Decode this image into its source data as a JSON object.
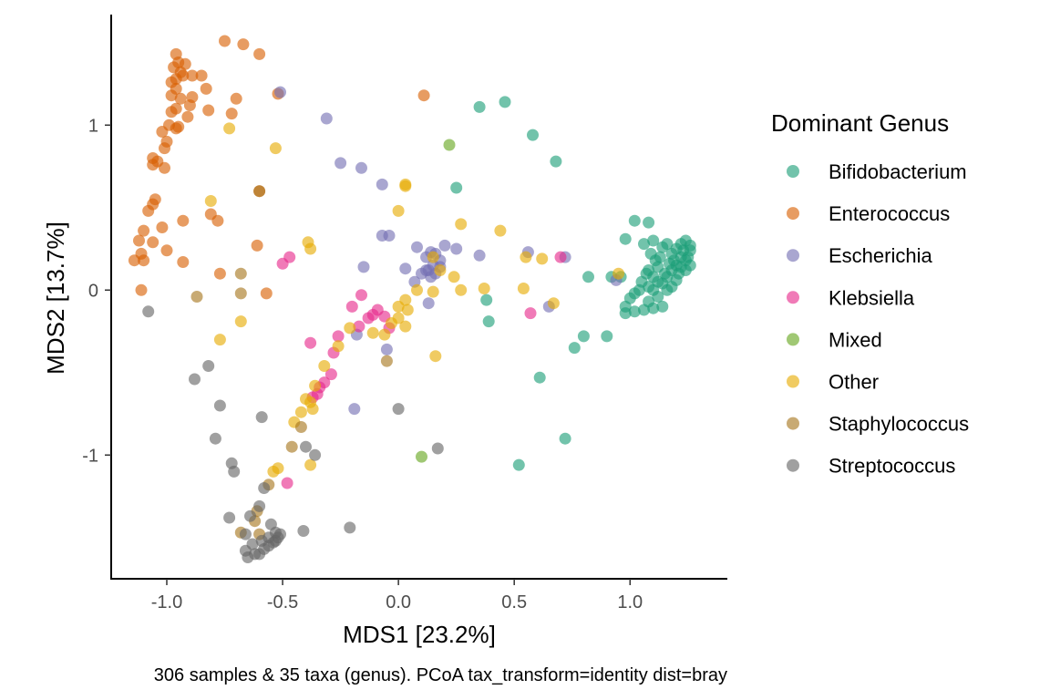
{
  "chart_data": {
    "type": "scatter",
    "xlabel": "MDS1 [23.2%]",
    "ylabel": "MDS2 [13.7%]",
    "caption": "306 samples & 35 taxa (genus). PCoA tax_transform=identity dist=bray",
    "xlim": [
      -1.24,
      1.42
    ],
    "ylim": [
      -1.75,
      1.67
    ],
    "x_ticks": [
      -1.0,
      -0.5,
      0.0,
      0.5,
      1.0
    ],
    "x_tick_labels": [
      "-1.0",
      "-0.5",
      "0.0",
      "0.5",
      "1.0"
    ],
    "y_ticks": [
      -1,
      0,
      1
    ],
    "y_tick_labels": [
      "-1",
      "0",
      "1"
    ],
    "grid": false,
    "legend": {
      "title": "Dominant Genus",
      "position": "right"
    },
    "series": [
      {
        "name": "Bifidobacterium",
        "color": "#1B9E77",
        "points": [
          [
            0.35,
            1.11
          ],
          [
            0.46,
            1.14
          ],
          [
            0.58,
            0.94
          ],
          [
            0.68,
            0.78
          ],
          [
            0.25,
            0.62
          ],
          [
            1.02,
            0.42
          ],
          [
            1.08,
            0.41
          ],
          [
            0.98,
            0.31
          ],
          [
            1.06,
            0.28
          ],
          [
            1.1,
            0.3
          ],
          [
            1.14,
            0.26
          ],
          [
            1.16,
            0.28
          ],
          [
            1.18,
            0.22
          ],
          [
            1.2,
            0.25
          ],
          [
            1.22,
            0.28
          ],
          [
            1.24,
            0.3
          ],
          [
            1.26,
            0.27
          ],
          [
            1.22,
            0.2
          ],
          [
            1.2,
            0.15
          ],
          [
            1.18,
            0.12
          ],
          [
            1.15,
            0.1
          ],
          [
            1.12,
            0.14
          ],
          [
            1.1,
            0.08
          ],
          [
            1.08,
            0.12
          ],
          [
            1.05,
            0.05
          ],
          [
            1.08,
            0.02
          ],
          [
            1.12,
            0.05
          ],
          [
            1.16,
            0.08
          ],
          [
            1.2,
            0.06
          ],
          [
            1.24,
            0.12
          ],
          [
            1.26,
            0.15
          ],
          [
            1.25,
            0.2
          ],
          [
            1.23,
            0.24
          ],
          [
            1.21,
            0.1
          ],
          [
            1.19,
            0.18
          ],
          [
            1.17,
            0.16
          ],
          [
            1.13,
            0.2
          ],
          [
            1.11,
            0.18
          ],
          [
            1.09,
            0.22
          ],
          [
            1.07,
            0.1
          ],
          [
            1.04,
            0.0
          ],
          [
            1.02,
            -0.02
          ],
          [
            1.0,
            -0.05
          ],
          [
            0.98,
            -0.1
          ],
          [
            0.98,
            -0.14
          ],
          [
            1.02,
            -0.13
          ],
          [
            1.06,
            -0.12
          ],
          [
            1.1,
            -0.11
          ],
          [
            1.14,
            -0.1
          ],
          [
            1.08,
            -0.07
          ],
          [
            1.12,
            -0.04
          ],
          [
            1.18,
            0.02
          ],
          [
            1.22,
            0.14
          ],
          [
            1.24,
            0.18
          ],
          [
            1.26,
            0.24
          ],
          [
            1.16,
            0.0
          ],
          [
            1.14,
            0.04
          ],
          [
            1.1,
            0.0
          ],
          [
            0.96,
            0.08
          ],
          [
            0.82,
            0.08
          ],
          [
            0.92,
            0.08
          ],
          [
            0.8,
            -0.28
          ],
          [
            0.76,
            -0.35
          ],
          [
            0.9,
            -0.28
          ],
          [
            0.38,
            -0.06
          ],
          [
            0.39,
            -0.19
          ],
          [
            0.61,
            -0.53
          ],
          [
            0.72,
            -0.9
          ],
          [
            0.52,
            -1.06
          ]
        ]
      },
      {
        "name": "Enterococcus",
        "color": "#D95F02",
        "points": [
          [
            -0.75,
            1.51
          ],
          [
            -0.67,
            1.49
          ],
          [
            -0.6,
            1.43
          ],
          [
            -0.96,
            1.43
          ],
          [
            -0.95,
            1.38
          ],
          [
            -0.97,
            1.35
          ],
          [
            -0.94,
            1.32
          ],
          [
            -0.92,
            1.37
          ],
          [
            -0.96,
            1.28
          ],
          [
            -0.98,
            1.26
          ],
          [
            -0.93,
            1.3
          ],
          [
            -0.89,
            1.3
          ],
          [
            -0.85,
            1.3
          ],
          [
            -0.96,
            1.22
          ],
          [
            -0.98,
            1.18
          ],
          [
            -0.94,
            1.16
          ],
          [
            -0.89,
            1.17
          ],
          [
            -0.83,
            1.22
          ],
          [
            -0.7,
            1.16
          ],
          [
            -0.52,
            1.19
          ],
          [
            0.11,
            1.18
          ],
          [
            -0.96,
            1.1
          ],
          [
            -0.9,
            1.12
          ],
          [
            -0.98,
            1.08
          ],
          [
            -0.91,
            1.05
          ],
          [
            -0.95,
            0.99
          ],
          [
            -0.99,
            1.0
          ],
          [
            -0.82,
            1.09
          ],
          [
            -0.72,
            1.07
          ],
          [
            -1.02,
            0.96
          ],
          [
            -0.96,
            0.98
          ],
          [
            -1.0,
            0.9
          ],
          [
            -1.01,
            0.86
          ],
          [
            -1.06,
            0.8
          ],
          [
            -1.04,
            0.78
          ],
          [
            -1.06,
            0.76
          ],
          [
            -1.01,
            0.74
          ],
          [
            -0.6,
            0.6
          ],
          [
            -1.05,
            0.55
          ],
          [
            -1.06,
            0.52
          ],
          [
            -1.08,
            0.48
          ],
          [
            -0.81,
            0.46
          ],
          [
            -0.78,
            0.42
          ],
          [
            -0.93,
            0.42
          ],
          [
            -1.02,
            0.38
          ],
          [
            -1.1,
            0.36
          ],
          [
            -1.12,
            0.3
          ],
          [
            -1.06,
            0.29
          ],
          [
            -0.61,
            0.27
          ],
          [
            -1.0,
            0.24
          ],
          [
            -1.11,
            0.22
          ],
          [
            -1.1,
            0.18
          ],
          [
            -1.14,
            0.18
          ],
          [
            -0.93,
            0.17
          ],
          [
            -0.77,
            0.1
          ],
          [
            -1.11,
            0.0
          ],
          [
            -0.57,
            -0.02
          ]
        ]
      },
      {
        "name": "Escherichia",
        "color": "#7570B3",
        "points": [
          [
            -0.51,
            1.2
          ],
          [
            -0.31,
            1.04
          ],
          [
            -0.25,
            0.77
          ],
          [
            -0.16,
            0.74
          ],
          [
            -0.07,
            0.64
          ],
          [
            -0.04,
            0.33
          ],
          [
            -0.07,
            0.33
          ],
          [
            0.08,
            0.26
          ],
          [
            0.12,
            0.2
          ],
          [
            0.14,
            0.23
          ],
          [
            0.16,
            0.22
          ],
          [
            0.18,
            0.18
          ],
          [
            0.15,
            0.15
          ],
          [
            0.13,
            0.12
          ],
          [
            0.16,
            0.1
          ],
          [
            0.14,
            0.08
          ],
          [
            0.12,
            0.12
          ],
          [
            0.18,
            0.14
          ],
          [
            0.2,
            0.27
          ],
          [
            0.25,
            0.25
          ],
          [
            0.35,
            0.21
          ],
          [
            0.56,
            0.23
          ],
          [
            0.72,
            0.2
          ],
          [
            0.94,
            0.06
          ],
          [
            -0.15,
            0.14
          ],
          [
            0.03,
            0.13
          ],
          [
            0.07,
            0.05
          ],
          [
            0.1,
            0.1
          ],
          [
            0.13,
            -0.08
          ],
          [
            -0.18,
            -0.27
          ],
          [
            -0.05,
            -0.36
          ],
          [
            0.65,
            -0.1
          ],
          [
            -0.19,
            -0.72
          ]
        ]
      },
      {
        "name": "Klebsiella",
        "color": "#E7298A",
        "points": [
          [
            -0.47,
            0.2
          ],
          [
            -0.5,
            0.16
          ],
          [
            0.7,
            0.2
          ],
          [
            0.57,
            -0.14
          ],
          [
            -0.38,
            -0.32
          ],
          [
            -0.16,
            -0.03
          ],
          [
            -0.2,
            -0.1
          ],
          [
            -0.17,
            -0.22
          ],
          [
            -0.13,
            -0.17
          ],
          [
            -0.11,
            -0.15
          ],
          [
            -0.09,
            -0.12
          ],
          [
            -0.06,
            -0.16
          ],
          [
            -0.04,
            -0.23
          ],
          [
            -0.26,
            -0.28
          ],
          [
            -0.28,
            -0.38
          ],
          [
            -0.29,
            -0.51
          ],
          [
            -0.32,
            -0.56
          ],
          [
            -0.35,
            -0.63
          ],
          [
            -0.48,
            -1.17
          ],
          [
            -0.37,
            -0.65
          ],
          [
            -0.34,
            -0.59
          ]
        ]
      },
      {
        "name": "Mixed",
        "color": "#66A61E",
        "points": [
          [
            0.22,
            0.88
          ],
          [
            0.1,
            -1.01
          ]
        ]
      },
      {
        "name": "Other",
        "color": "#E6AB02",
        "points": [
          [
            -0.73,
            0.98
          ],
          [
            -0.53,
            0.86
          ],
          [
            0.03,
            0.64
          ],
          [
            -0.81,
            0.54
          ],
          [
            0.0,
            0.48
          ],
          [
            0.27,
            0.4
          ],
          [
            0.44,
            0.36
          ],
          [
            -0.39,
            0.29
          ],
          [
            -0.38,
            0.25
          ],
          [
            0.15,
            0.2
          ],
          [
            0.55,
            0.2
          ],
          [
            0.62,
            0.19
          ],
          [
            0.18,
            0.12
          ],
          [
            0.24,
            0.08
          ],
          [
            0.37,
            0.01
          ],
          [
            0.54,
            0.01
          ],
          [
            0.67,
            -0.08
          ],
          [
            0.08,
            0.0
          ],
          [
            0.15,
            -0.01
          ],
          [
            0.27,
            0.0
          ],
          [
            0.03,
            -0.06
          ],
          [
            0.0,
            -0.1
          ],
          [
            0.04,
            -0.12
          ],
          [
            0.0,
            -0.17
          ],
          [
            0.03,
            -0.22
          ],
          [
            -0.03,
            -0.2
          ],
          [
            -0.06,
            -0.27
          ],
          [
            -0.11,
            -0.26
          ],
          [
            -0.21,
            -0.23
          ],
          [
            -0.26,
            -0.34
          ],
          [
            -0.32,
            -0.46
          ],
          [
            -0.36,
            -0.58
          ],
          [
            -0.4,
            -0.66
          ],
          [
            -0.37,
            -0.72
          ],
          [
            -0.42,
            -0.74
          ],
          [
            -0.45,
            -0.8
          ],
          [
            -0.52,
            -1.08
          ],
          [
            -0.54,
            -1.1
          ],
          [
            0.16,
            -0.4
          ],
          [
            -0.38,
            -1.06
          ],
          [
            -0.68,
            -0.19
          ],
          [
            -0.77,
            -0.3
          ],
          [
            -0.38,
            -0.68
          ],
          [
            0.03,
            0.63
          ],
          [
            0.95,
            0.1
          ]
        ]
      },
      {
        "name": "Staphylococcus",
        "color": "#A6761D",
        "points": [
          [
            -0.6,
            0.6
          ],
          [
            -0.68,
            0.1
          ],
          [
            -0.87,
            -0.04
          ],
          [
            -0.68,
            -0.02
          ],
          [
            -0.05,
            -0.43
          ],
          [
            -0.42,
            -0.83
          ],
          [
            -0.46,
            -0.95
          ],
          [
            -0.56,
            -1.18
          ],
          [
            -0.61,
            -1.34
          ],
          [
            -0.62,
            -1.4
          ],
          [
            -0.6,
            -1.48
          ],
          [
            -0.68,
            -1.47
          ]
        ]
      },
      {
        "name": "Streptococcus",
        "color": "#666666",
        "points": [
          [
            -1.08,
            -0.13
          ],
          [
            -0.88,
            -0.54
          ],
          [
            -0.82,
            -0.46
          ],
          [
            -0.77,
            -0.7
          ],
          [
            -0.79,
            -0.9
          ],
          [
            -0.59,
            -0.77
          ],
          [
            -0.0,
            -0.72
          ],
          [
            -0.4,
            -0.95
          ],
          [
            -0.36,
            -1.0
          ],
          [
            0.17,
            -0.96
          ],
          [
            -0.72,
            -1.05
          ],
          [
            -0.71,
            -1.1
          ],
          [
            -0.58,
            -1.2
          ],
          [
            -0.73,
            -1.38
          ],
          [
            -0.64,
            -1.37
          ],
          [
            -0.6,
            -1.31
          ],
          [
            -0.55,
            -1.42
          ],
          [
            -0.53,
            -1.47
          ],
          [
            -0.52,
            -1.5
          ],
          [
            -0.54,
            -1.53
          ],
          [
            -0.56,
            -1.55
          ],
          [
            -0.58,
            -1.57
          ],
          [
            -0.6,
            -1.6
          ],
          [
            -0.62,
            -1.6
          ],
          [
            -0.65,
            -1.62
          ],
          [
            -0.66,
            -1.58
          ],
          [
            -0.63,
            -1.54
          ],
          [
            -0.59,
            -1.52
          ],
          [
            -0.56,
            -1.5
          ],
          [
            -0.51,
            -1.48
          ],
          [
            -0.41,
            -1.46
          ],
          [
            -0.21,
            -1.44
          ],
          [
            -0.66,
            -1.48
          ],
          [
            -0.53,
            -1.52
          ]
        ]
      }
    ]
  }
}
